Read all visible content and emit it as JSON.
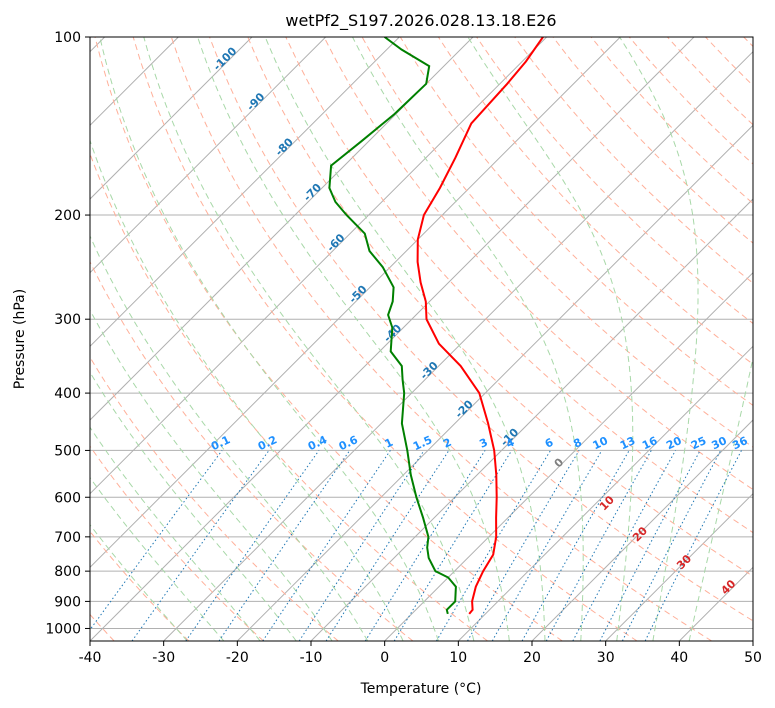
{
  "chart_data": {
    "type": "line",
    "subtype": "skew-t log-p",
    "title": "wetPf2_S197.2026.028.13.18.E26",
    "xlabel": "Temperature (°C)",
    "ylabel": "Pressure (hPa)",
    "xlim": [
      -40,
      50
    ],
    "ylim": [
      1050,
      100
    ],
    "x_ticks": [
      -40,
      -30,
      -20,
      -10,
      0,
      10,
      20,
      30,
      40,
      50
    ],
    "y_ticks": [
      100,
      200,
      300,
      400,
      500,
      600,
      700,
      800,
      900,
      1000
    ],
    "colors": {
      "temperature": "#ff0000",
      "dewpoint": "#008000",
      "isotherm": "#b0b0b0",
      "dry_adiabat": "#ffb09a",
      "moist_adiabat": "#a8d8a8",
      "mixing_ratio": "#1f77b4",
      "mixing_label": "#1e90ff",
      "isotherm_label": "#1f77b4",
      "theta_e_label": "#d62728",
      "ccl_label": "#808080"
    },
    "series": [
      {
        "name": "Temperature",
        "color": "#ff0000",
        "points": [
          [
            945,
            7.8
          ],
          [
            930,
            7.7
          ],
          [
            900,
            6.5
          ],
          [
            850,
            5.0
          ],
          [
            800,
            3.9
          ],
          [
            750,
            3.0
          ],
          [
            700,
            1.0
          ],
          [
            650,
            -1.6
          ],
          [
            600,
            -4.3
          ],
          [
            550,
            -7.4
          ],
          [
            500,
            -11.0
          ],
          [
            450,
            -15.5
          ],
          [
            400,
            -20.8
          ],
          [
            360,
            -27.0
          ],
          [
            330,
            -33.0
          ],
          [
            300,
            -38.0
          ],
          [
            280,
            -40.5
          ],
          [
            260,
            -43.8
          ],
          [
            240,
            -47.0
          ],
          [
            220,
            -50.0
          ],
          [
            200,
            -52.5
          ],
          [
            180,
            -54.0
          ],
          [
            160,
            -56.0
          ],
          [
            140,
            -58.5
          ],
          [
            120,
            -59.0
          ],
          [
            110,
            -59.5
          ],
          [
            100,
            -60.5
          ]
        ]
      },
      {
        "name": "Dew Point",
        "color": "#008000",
        "points": [
          [
            945,
            4.9
          ],
          [
            930,
            4.2
          ],
          [
            900,
            4.2
          ],
          [
            850,
            2.3
          ],
          [
            820,
            0.0
          ],
          [
            800,
            -2.6
          ],
          [
            760,
            -5.3
          ],
          [
            730,
            -6.9
          ],
          [
            700,
            -8.2
          ],
          [
            650,
            -11.5
          ],
          [
            600,
            -15.2
          ],
          [
            550,
            -19.0
          ],
          [
            500,
            -22.8
          ],
          [
            450,
            -27.2
          ],
          [
            400,
            -31.0
          ],
          [
            380,
            -33.0
          ],
          [
            360,
            -35.0
          ],
          [
            340,
            -38.5
          ],
          [
            310,
            -41.5
          ],
          [
            295,
            -43.8
          ],
          [
            280,
            -45.0
          ],
          [
            265,
            -46.8
          ],
          [
            245,
            -51.0
          ],
          [
            230,
            -55.0
          ],
          [
            215,
            -58.0
          ],
          [
            200,
            -63.0
          ],
          [
            190,
            -66.3
          ],
          [
            180,
            -69.0
          ],
          [
            165,
            -71.8
          ],
          [
            150,
            -71.0
          ],
          [
            135,
            -70.2
          ],
          [
            120,
            -70.0
          ],
          [
            112,
            -72.0
          ],
          [
            105,
            -78.0
          ],
          [
            100,
            -82.0
          ]
        ]
      }
    ],
    "isotherm_labels": [
      "-100",
      "-90",
      "-80",
      "-70",
      "-60",
      "-50",
      "-40",
      "-30",
      "-20",
      "-10"
    ],
    "mixing_ratio_labels": [
      "0.1",
      "0.2",
      "0.4",
      "0.6",
      "1",
      "1.5",
      "2",
      "3",
      "4",
      "6",
      "8",
      "10",
      "13",
      "16",
      "20",
      "25",
      "30",
      "36"
    ],
    "theta_e_labels": [
      "0",
      "10",
      "20",
      "30",
      "40"
    ]
  }
}
